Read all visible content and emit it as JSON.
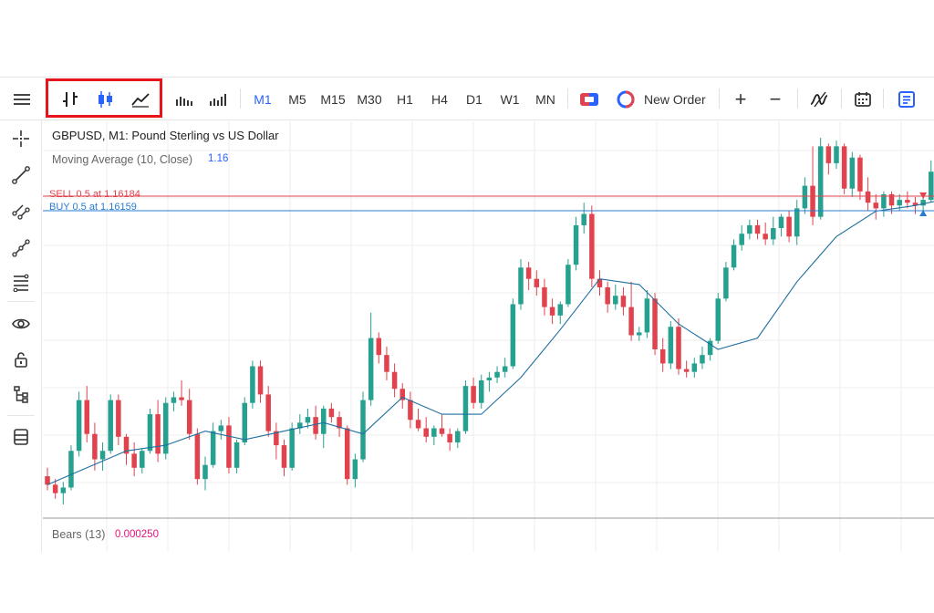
{
  "toolbar": {
    "chart_types": [
      "bar-chart-icon",
      "candlestick-chart-icon",
      "line-chart-icon"
    ],
    "volume_icons": [
      "tick-volume-icon",
      "real-volume-icon"
    ],
    "timeframes": [
      {
        "label": "M1",
        "active": true
      },
      {
        "label": "M5",
        "active": false
      },
      {
        "label": "M15",
        "active": false
      },
      {
        "label": "M30",
        "active": false
      },
      {
        "label": "H1",
        "active": false
      },
      {
        "label": "H4",
        "active": false
      },
      {
        "label": "D1",
        "active": false
      },
      {
        "label": "W1",
        "active": false
      },
      {
        "label": "MN",
        "active": false
      }
    ],
    "new_order_label": "New Order",
    "zoom_in": "+",
    "zoom_out": "−"
  },
  "sidebar": {
    "items": [
      "crosshair-icon",
      "trendline-icon",
      "parallel-channel-icon",
      "polyline-icon",
      "fibonacci-icon",
      "visibility-icon",
      "lock-icon",
      "object-tree-icon",
      "layers-icon"
    ]
  },
  "chart": {
    "title": "GBPUSD, M1: Pound Sterling vs US Dollar",
    "ma_label": "Moving Average (10, Close)",
    "ma_value": "1.16",
    "sell_label": "SELL 0.5 at 1.16184",
    "buy_label": "BUY 0.5 at 1.16159",
    "bears_label": "Bears (13)",
    "bears_value": "0.000250"
  },
  "colors": {
    "bull": "#26a08f",
    "bear": "#e0434e",
    "ma": "#1f6f9f",
    "sell": "#e0434e",
    "buy": "#2a7bd1",
    "accent": "#2962ff",
    "highlight": "#e8141c"
  },
  "chart_data": {
    "type": "candlestick",
    "symbol": "GBPUSD",
    "timeframe": "M1",
    "sell_level": 1.16184,
    "buy_level": 1.16159,
    "indicator": "Moving Average (10, Close)",
    "candles": [
      [
        1.1563,
        1.1566,
        1.1558,
        1.156
      ],
      [
        1.156,
        1.1562,
        1.1555,
        1.1557
      ],
      [
        1.1557,
        1.1561,
        1.1553,
        1.1559
      ],
      [
        1.1559,
        1.1574,
        1.1558,
        1.1572
      ],
      [
        1.1572,
        1.1593,
        1.157,
        1.159
      ],
      [
        1.159,
        1.1595,
        1.1575,
        1.1578
      ],
      [
        1.1578,
        1.1582,
        1.1565,
        1.1569
      ],
      [
        1.1569,
        1.1575,
        1.1565,
        1.1572
      ],
      [
        1.1572,
        1.1592,
        1.1571,
        1.159
      ],
      [
        1.159,
        1.1592,
        1.1574,
        1.1577
      ],
      [
        1.1577,
        1.1578,
        1.1567,
        1.1571
      ],
      [
        1.1571,
        1.1575,
        1.1563,
        1.1566
      ],
      [
        1.1566,
        1.1573,
        1.1564,
        1.1572
      ],
      [
        1.1572,
        1.1587,
        1.1571,
        1.1585
      ],
      [
        1.1585,
        1.159,
        1.1568,
        1.1571
      ],
      [
        1.1571,
        1.1591,
        1.1569,
        1.1589
      ],
      [
        1.1589,
        1.1593,
        1.1586,
        1.1591
      ],
      [
        1.1591,
        1.1597,
        1.1588,
        1.159
      ],
      [
        1.159,
        1.1594,
        1.1576,
        1.1578
      ],
      [
        1.1578,
        1.158,
        1.156,
        1.1562
      ],
      [
        1.1562,
        1.157,
        1.1558,
        1.1567
      ],
      [
        1.1567,
        1.1582,
        1.1566,
        1.1579
      ],
      [
        1.1579,
        1.1583,
        1.1576,
        1.1581
      ],
      [
        1.1581,
        1.1584,
        1.1564,
        1.1566
      ],
      [
        1.1566,
        1.1576,
        1.1564,
        1.1575
      ],
      [
        1.1575,
        1.1591,
        1.1574,
        1.1589
      ],
      [
        1.1589,
        1.1604,
        1.1587,
        1.1602
      ],
      [
        1.1602,
        1.1604,
        1.1589,
        1.1592
      ],
      [
        1.1592,
        1.1595,
        1.1577,
        1.1579
      ],
      [
        1.1579,
        1.1582,
        1.1569,
        1.1574
      ],
      [
        1.1574,
        1.1576,
        1.1563,
        1.1566
      ],
      [
        1.1566,
        1.1582,
        1.1565,
        1.158
      ],
      [
        1.158,
        1.1585,
        1.1578,
        1.1582
      ],
      [
        1.1582,
        1.1587,
        1.158,
        1.1584
      ],
      [
        1.1584,
        1.1588,
        1.1576,
        1.1578
      ],
      [
        1.1578,
        1.1588,
        1.1573,
        1.1587
      ],
      [
        1.1587,
        1.1589,
        1.1582,
        1.1584
      ],
      [
        1.1584,
        1.1586,
        1.1577,
        1.158
      ],
      [
        1.158,
        1.1581,
        1.156,
        1.1562
      ],
      [
        1.1562,
        1.1571,
        1.1559,
        1.1569
      ],
      [
        1.1569,
        1.1593,
        1.1568,
        1.159
      ],
      [
        1.159,
        1.1621,
        1.1588,
        1.1612
      ],
      [
        1.1612,
        1.1614,
        1.1603,
        1.1606
      ],
      [
        1.1606,
        1.1609,
        1.1597,
        1.16
      ],
      [
        1.16,
        1.1603,
        1.1591,
        1.1594
      ],
      [
        1.1594,
        1.1596,
        1.1587,
        1.159
      ],
      [
        1.159,
        1.1593,
        1.158,
        1.1583
      ],
      [
        1.1583,
        1.1587,
        1.1579,
        1.158
      ],
      [
        1.158,
        1.1584,
        1.1575,
        1.1577
      ],
      [
        1.1577,
        1.1581,
        1.1574,
        1.158
      ],
      [
        1.158,
        1.1585,
        1.1577,
        1.1578
      ],
      [
        1.1578,
        1.158,
        1.1572,
        1.1575
      ],
      [
        1.1575,
        1.158,
        1.1573,
        1.1579
      ],
      [
        1.1579,
        1.1597,
        1.1578,
        1.1595
      ],
      [
        1.1595,
        1.1598,
        1.1587,
        1.1589
      ],
      [
        1.1589,
        1.1599,
        1.1587,
        1.1597
      ],
      [
        1.1597,
        1.16,
        1.1593,
        1.1598
      ],
      [
        1.1598,
        1.1602,
        1.1596,
        1.16
      ],
      [
        1.16,
        1.1605,
        1.1598,
        1.1602
      ],
      [
        1.1602,
        1.1626,
        1.1601,
        1.1624
      ],
      [
        1.1624,
        1.164,
        1.1622,
        1.1637
      ],
      [
        1.1637,
        1.1639,
        1.1629,
        1.1633
      ],
      [
        1.1633,
        1.1636,
        1.1627,
        1.163
      ],
      [
        1.163,
        1.1633,
        1.162,
        1.1623
      ],
      [
        1.1623,
        1.1626,
        1.1617,
        1.162
      ],
      [
        1.162,
        1.1625,
        1.1617,
        1.1624
      ],
      [
        1.1624,
        1.164,
        1.1623,
        1.1638
      ],
      [
        1.1638,
        1.1655,
        1.1636,
        1.1652
      ],
      [
        1.1652,
        1.166,
        1.1649,
        1.1656
      ],
      [
        1.1656,
        1.1659,
        1.163,
        1.1633
      ],
      [
        1.1633,
        1.1636,
        1.1627,
        1.163
      ],
      [
        1.163,
        1.1632,
        1.1621,
        1.1624
      ],
      [
        1.1624,
        1.1631,
        1.1622,
        1.1627
      ],
      [
        1.1627,
        1.163,
        1.162,
        1.1623
      ],
      [
        1.1623,
        1.1632,
        1.1611,
        1.1613
      ],
      [
        1.1613,
        1.1616,
        1.1611,
        1.1614
      ],
      [
        1.1614,
        1.1629,
        1.1612,
        1.1626
      ],
      [
        1.1626,
        1.1628,
        1.1606,
        1.1608
      ],
      [
        1.1608,
        1.1612,
        1.16,
        1.1603
      ],
      [
        1.1603,
        1.1618,
        1.1601,
        1.1616
      ],
      [
        1.1616,
        1.1619,
        1.1599,
        1.1601
      ],
      [
        1.1601,
        1.1604,
        1.1598,
        1.16
      ],
      [
        1.16,
        1.1605,
        1.1598,
        1.1603
      ],
      [
        1.1603,
        1.1609,
        1.1601,
        1.1606
      ],
      [
        1.1606,
        1.1612,
        1.1604,
        1.1611
      ],
      [
        1.1611,
        1.1628,
        1.161,
        1.1626
      ],
      [
        1.1626,
        1.1639,
        1.1625,
        1.1637
      ],
      [
        1.1637,
        1.1647,
        1.1636,
        1.1645
      ],
      [
        1.1645,
        1.1652,
        1.1643,
        1.1649
      ],
      [
        1.1649,
        1.1654,
        1.1647,
        1.1652
      ],
      [
        1.1652,
        1.1654,
        1.1647,
        1.1649
      ],
      [
        1.1649,
        1.1653,
        1.1645,
        1.1647
      ],
      [
        1.1647,
        1.1655,
        1.1645,
        1.1651
      ],
      [
        1.1651,
        1.1656,
        1.1648,
        1.1655
      ],
      [
        1.1655,
        1.1657,
        1.1646,
        1.1648
      ],
      [
        1.1648,
        1.1661,
        1.1645,
        1.1658
      ],
      [
        1.1658,
        1.1669,
        1.1656,
        1.1666
      ],
      [
        1.1666,
        1.168,
        1.1652,
        1.1655
      ],
      [
        1.1655,
        1.1683,
        1.1654,
        1.168
      ],
      [
        1.168,
        1.1681,
        1.167,
        1.1674
      ],
      [
        1.1674,
        1.1682,
        1.1672,
        1.168
      ],
      [
        1.168,
        1.1681,
        1.1663,
        1.1665
      ],
      [
        1.1665,
        1.1678,
        1.1662,
        1.1676
      ],
      [
        1.1676,
        1.1677,
        1.1661,
        1.1664
      ],
      [
        1.1664,
        1.1669,
        1.1657,
        1.166
      ],
      [
        1.166,
        1.1663,
        1.1654,
        1.1658
      ],
      [
        1.1658,
        1.1664,
        1.1655,
        1.1663
      ],
      [
        1.1663,
        1.1664,
        1.1656,
        1.1659
      ],
      [
        1.1659,
        1.1663,
        1.1657,
        1.1661
      ],
      [
        1.1661,
        1.1664,
        1.1658,
        1.166
      ],
      [
        1.166,
        1.1662,
        1.1656,
        1.1659
      ],
      [
        1.1659,
        1.1662,
        1.1656,
        1.1661
      ],
      [
        1.1661,
        1.1675,
        1.166,
        1.1671
      ],
      [
        1.1671,
        1.1672,
        1.1664,
        1.1666
      ]
    ],
    "ma": [
      [
        0,
        1.156
      ],
      [
        5,
        1.1566
      ],
      [
        10,
        1.1572
      ],
      [
        15,
        1.1574
      ],
      [
        20,
        1.1579
      ],
      [
        25,
        1.1576
      ],
      [
        30,
        1.1579
      ],
      [
        35,
        1.1582
      ],
      [
        40,
        1.1578
      ],
      [
        45,
        1.1591
      ],
      [
        50,
        1.1585
      ],
      [
        55,
        1.1585
      ],
      [
        60,
        1.1598
      ],
      [
        65,
        1.1615
      ],
      [
        70,
        1.1633
      ],
      [
        75,
        1.1631
      ],
      [
        80,
        1.1617
      ],
      [
        85,
        1.1608
      ],
      [
        90,
        1.1612
      ],
      [
        95,
        1.1632
      ],
      [
        100,
        1.1648
      ],
      [
        105,
        1.1657
      ],
      [
        110,
        1.1659
      ],
      [
        115,
        1.1662
      ]
    ]
  }
}
